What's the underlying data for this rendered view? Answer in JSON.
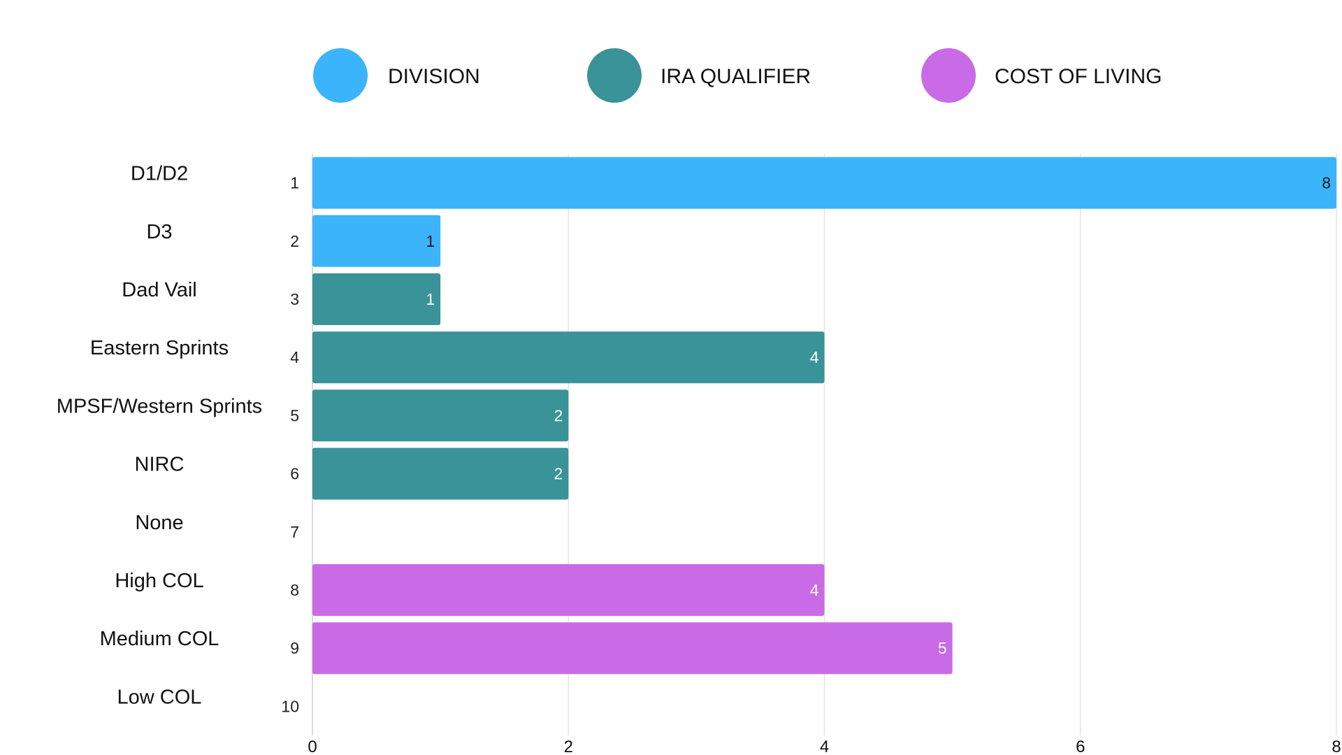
{
  "chart_data": {
    "type": "bar",
    "orientation": "horizontal",
    "legend_position": "top",
    "grid": true,
    "xlim": [
      0,
      8
    ],
    "x_ticks": [
      "0",
      "2",
      "4",
      "6",
      "8"
    ],
    "legend": [
      {
        "name": "DIVISION",
        "color": "#3bb4fc"
      },
      {
        "name": "IRA QUALIFIER",
        "color": "#3a9399"
      },
      {
        "name": "COST OF LIVING",
        "color": "#c96be6"
      }
    ],
    "rows": [
      {
        "label": "D1/D2",
        "index": "1",
        "value": 8,
        "group": "DIVISION"
      },
      {
        "label": "D3",
        "index": "2",
        "value": 1,
        "group": "DIVISION"
      },
      {
        "label": "Dad Vail",
        "index": "3",
        "value": 1,
        "group": "IRA QUALIFIER"
      },
      {
        "label": "Eastern Sprints",
        "index": "4",
        "value": 4,
        "group": "IRA QUALIFIER"
      },
      {
        "label": "MPSF/Western Sprints",
        "index": "5",
        "value": 2,
        "group": "IRA QUALIFIER"
      },
      {
        "label": "NIRC",
        "index": "6",
        "value": 2,
        "group": "IRA QUALIFIER"
      },
      {
        "label": "None",
        "index": "7",
        "value": 0,
        "group": "IRA QUALIFIER"
      },
      {
        "label": "High COL",
        "index": "8",
        "value": 4,
        "group": "COST OF LIVING"
      },
      {
        "label": "Medium COL",
        "index": "9",
        "value": 5,
        "group": "COST OF LIVING"
      },
      {
        "label": "Low COL",
        "index": "10",
        "value": 0,
        "group": "COST OF LIVING"
      }
    ]
  }
}
